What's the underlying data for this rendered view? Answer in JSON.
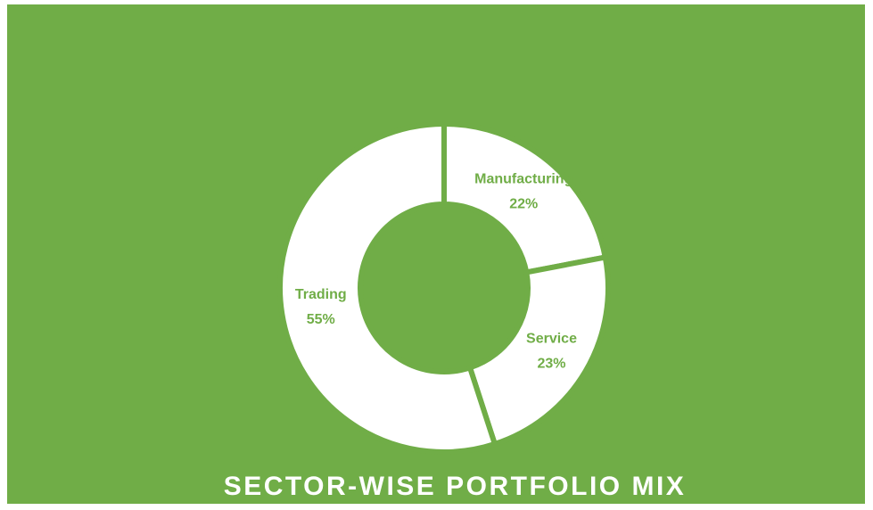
{
  "chart_data": {
    "type": "donut",
    "title": "SECTOR-WISE PORTFOLIO MIX",
    "categories": [
      "Manufacturing",
      "Service",
      "Trading"
    ],
    "values": [
      22,
      23,
      55
    ],
    "value_labels": [
      "22%",
      "23%",
      "55%"
    ],
    "background": "#70ad47",
    "slice_color": "#ffffff",
    "label_color": "#70ad47"
  }
}
